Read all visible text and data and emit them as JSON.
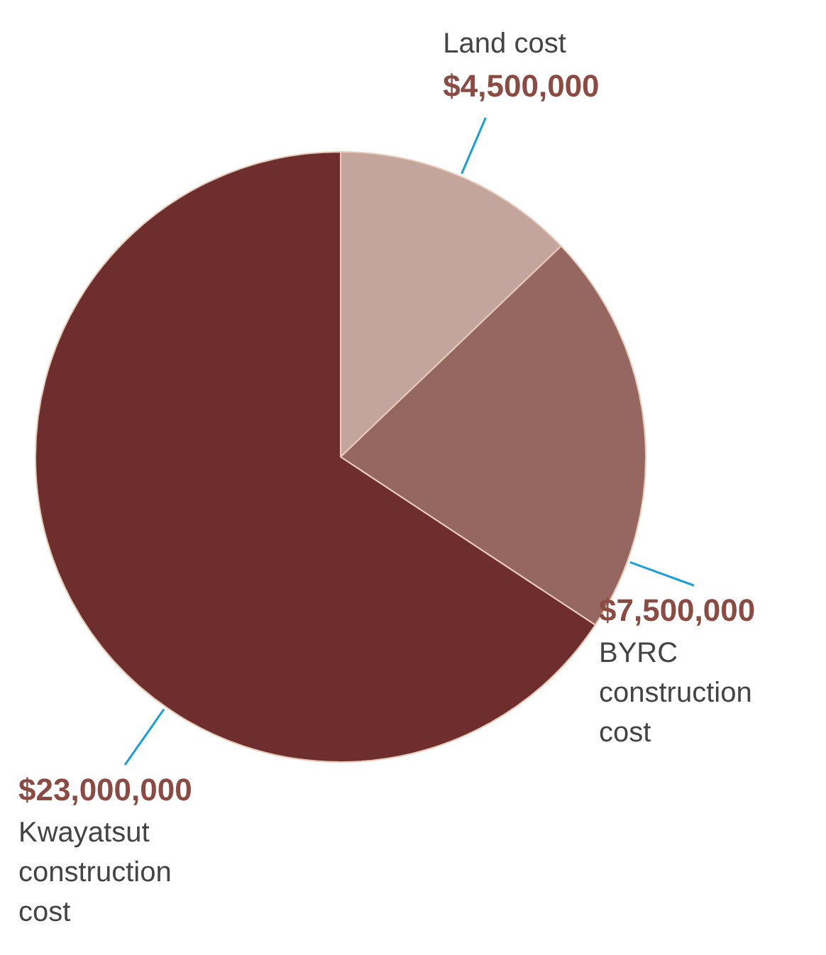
{
  "chart_data": {
    "type": "pie",
    "categories": [
      "Land cost",
      "BYRC construction cost",
      "Kwayatsut construction cost"
    ],
    "values": [
      4500000,
      7500000,
      23000000
    ],
    "colors": [
      "#c4a59d",
      "#956760",
      "#6e2e2e"
    ],
    "value_labels": [
      "$4,500,000",
      "$7,500,000",
      "$23,000,000"
    ]
  }
}
